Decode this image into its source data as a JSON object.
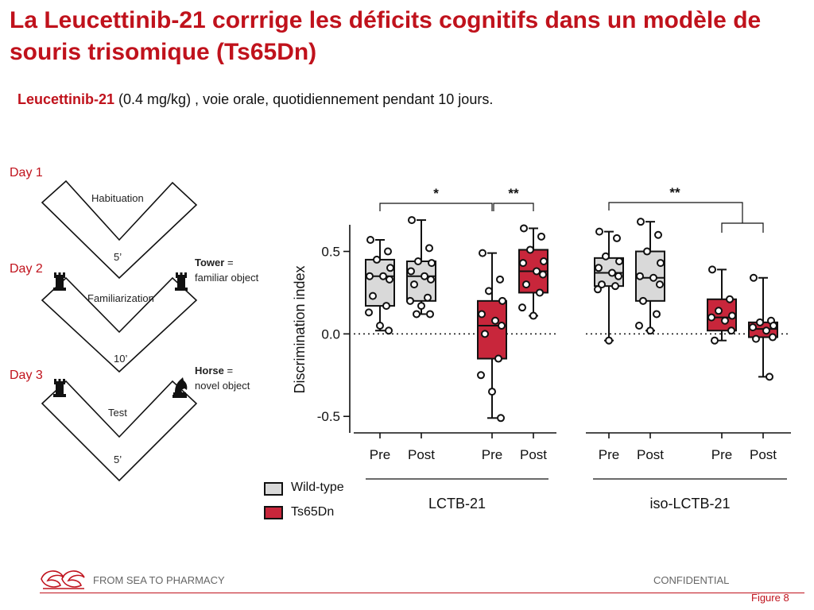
{
  "slide": {
    "title": "La Leucettinib-21 corrrige les déficits cognitifs dans un modèle de souris trisomique (Ts65Dn)",
    "subtitle_drug": "Leucettinib-21",
    "subtitle_rest": " (0.4 mg/kg) , voie orale, quotidiennement pendant 10 jours."
  },
  "protocol": {
    "days": [
      {
        "day": "Day 1",
        "stage": "Habituation",
        "duration": "5’"
      },
      {
        "day": "Day 2",
        "stage": "Familiarization",
        "duration": "10’"
      },
      {
        "day": "Day 3",
        "stage": "Test",
        "duration": "5’"
      }
    ],
    "objects": {
      "familiar_bold": "Tower",
      "familiar_suffix": " =",
      "familiar_desc": "familiar object",
      "novel_bold": "Horse",
      "novel_suffix": " =",
      "novel_desc": "novel object"
    },
    "object_icons": [
      "chess-rook-icon",
      "chess-knight-icon"
    ]
  },
  "chart_data": {
    "type": "box",
    "ylabel": "Discrimination index",
    "ylim": [
      -0.6,
      0.7
    ],
    "yticks": [
      -0.5,
      0.0,
      0.5
    ],
    "ytick_labels": [
      "-0.5",
      "0.0",
      "0.5"
    ],
    "reference_line": 0.0,
    "legend": [
      {
        "name": "Wild-type",
        "color": "#d9d9d9"
      },
      {
        "name": "Ts65Dn",
        "color": "#c8263b"
      }
    ],
    "panels": [
      {
        "label": "LCTB-21",
        "groups": [
          {
            "tick": "Pre",
            "genotype": "Wild-type",
            "min": 0.02,
            "q1": 0.17,
            "median": 0.35,
            "q3": 0.45,
            "max": 0.57,
            "points": [
              0.57,
              0.5,
              0.45,
              0.4,
              0.35,
              0.35,
              0.33,
              0.23,
              0.17,
              0.13,
              0.05,
              0.02
            ]
          },
          {
            "tick": "Post",
            "genotype": "Wild-type",
            "min": 0.12,
            "q1": 0.2,
            "median": 0.35,
            "q3": 0.44,
            "max": 0.69,
            "points": [
              0.69,
              0.52,
              0.44,
              0.43,
              0.38,
              0.35,
              0.33,
              0.3,
              0.22,
              0.2,
              0.17,
              0.12,
              0.12
            ]
          },
          {
            "tick": "Pre",
            "genotype": "Ts65Dn",
            "min": -0.51,
            "q1": -0.15,
            "median": 0.05,
            "q3": 0.2,
            "max": 0.49,
            "points": [
              0.49,
              0.33,
              0.26,
              0.2,
              0.12,
              0.08,
              0.05,
              0.0,
              -0.15,
              -0.25,
              -0.35,
              -0.51
            ]
          },
          {
            "tick": "Post",
            "genotype": "Ts65Dn",
            "min": 0.11,
            "q1": 0.25,
            "median": 0.38,
            "q3": 0.51,
            "max": 0.64,
            "points": [
              0.64,
              0.59,
              0.51,
              0.44,
              0.43,
              0.38,
              0.36,
              0.3,
              0.25,
              0.16,
              0.11
            ]
          }
        ]
      },
      {
        "label": "iso-LCTB-21",
        "groups": [
          {
            "tick": "Pre",
            "genotype": "Wild-type",
            "min": -0.04,
            "q1": 0.29,
            "median": 0.37,
            "q3": 0.46,
            "max": 0.62,
            "points": [
              0.62,
              0.58,
              0.47,
              0.44,
              0.4,
              0.37,
              0.35,
              0.3,
              0.29,
              0.27,
              -0.04
            ]
          },
          {
            "tick": "Post",
            "genotype": "Wild-type",
            "min": 0.02,
            "q1": 0.2,
            "median": 0.34,
            "q3": 0.5,
            "max": 0.68,
            "points": [
              0.68,
              0.6,
              0.5,
              0.43,
              0.35,
              0.34,
              0.3,
              0.2,
              0.12,
              0.05,
              0.02
            ]
          },
          {
            "tick": "Pre",
            "genotype": "Ts65Dn",
            "min": -0.04,
            "q1": 0.02,
            "median": 0.1,
            "q3": 0.21,
            "max": 0.39,
            "points": [
              0.39,
              0.21,
              0.14,
              0.11,
              0.1,
              0.08,
              0.02,
              -0.04
            ]
          },
          {
            "tick": "Post",
            "genotype": "Ts65Dn",
            "min": -0.26,
            "q1": -0.02,
            "median": 0.03,
            "q3": 0.07,
            "max": 0.34,
            "points": [
              0.34,
              0.08,
              0.07,
              0.05,
              0.04,
              0.02,
              -0.02,
              -0.03,
              -0.26
            ]
          }
        ]
      }
    ],
    "significance": [
      {
        "text": "*",
        "panel": 0,
        "from": 0,
        "to": 2
      },
      {
        "text": "**",
        "panel": 0,
        "from": 2,
        "to": 3
      },
      {
        "text": "**",
        "panel": 1,
        "from": 0,
        "to_pair": [
          2,
          3
        ]
      }
    ]
  },
  "footer": {
    "company": "FROM SEA TO PHARMACY",
    "confidential": "CONFIDENTIAL",
    "figure": "Figure 8"
  }
}
